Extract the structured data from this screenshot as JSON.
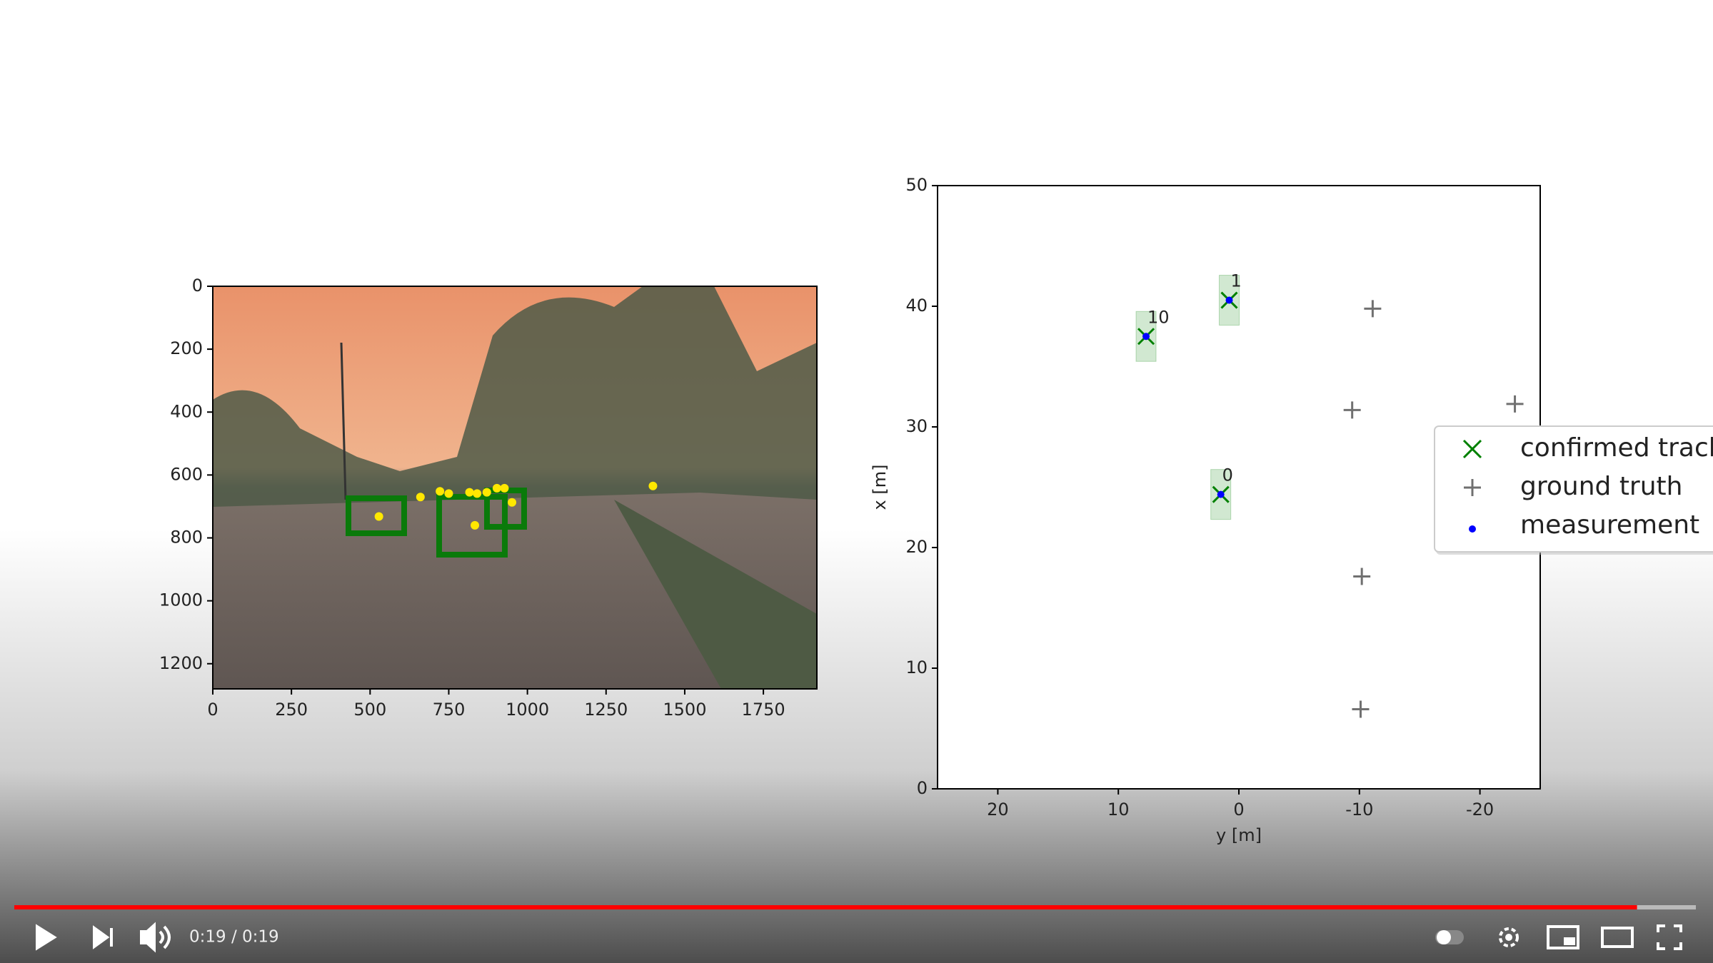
{
  "camera_plot": {
    "type": "scatter",
    "xlim": [
      0,
      1920
    ],
    "ylim": [
      1280,
      0
    ],
    "xticks": [
      0,
      250,
      500,
      750,
      1000,
      1250,
      1500,
      1750
    ],
    "yticks": [
      0,
      200,
      400,
      600,
      800,
      1000,
      1200
    ],
    "points": {
      "color": "#ffe800",
      "x": [
        528,
        660,
        722,
        750,
        816,
        840,
        871,
        903,
        927,
        951,
        833,
        1399
      ],
      "y": [
        732,
        670,
        652,
        659,
        655,
        659,
        655,
        642,
        642,
        687,
        760,
        635
      ]
    }
  },
  "tracking_plot": {
    "type": "scatter",
    "xlabel": "y [m]",
    "ylabel": "x [m]",
    "xlim": [
      25,
      -25
    ],
    "ylim": [
      0,
      50
    ],
    "xticks": [
      20,
      10,
      0,
      -10,
      -20
    ],
    "yticks": [
      0,
      10,
      20,
      30,
      40,
      50
    ],
    "legend": "right",
    "series": [
      {
        "name": "confirmed tracks",
        "color": "#008000",
        "marker": "x",
        "x": [
          7.7,
          0.8,
          1.5
        ],
        "y": [
          37.5,
          40.5,
          24.4
        ],
        "labels": [
          "10",
          "1",
          "0"
        ]
      },
      {
        "name": "ground truth",
        "color": "#707070",
        "marker": "+",
        "x": [
          -11.1,
          -9.4,
          -22.9,
          -10.2,
          -10.1
        ],
        "y": [
          39.8,
          31.4,
          31.9,
          17.6,
          6.6
        ]
      },
      {
        "name": "measurement",
        "color": "#0000ff",
        "marker": "dot",
        "x": [
          7.7,
          0.8,
          1.5
        ],
        "y": [
          37.5,
          40.5,
          24.4
        ]
      }
    ]
  },
  "player": {
    "time": "0:19 / 0:19",
    "progress": 0.965
  }
}
